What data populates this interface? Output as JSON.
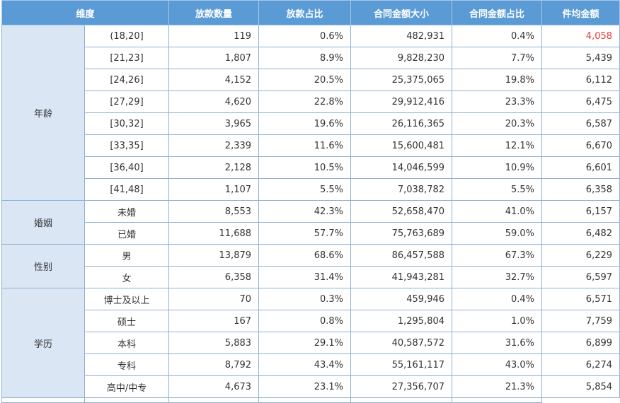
{
  "headers": [
    "维度",
    "放款数量",
    "放款占比",
    "合同金额大小",
    "合同金额占比",
    "件均金额"
  ],
  "groups": [
    {
      "name": "年龄",
      "rows": [
        {
          "label": "(18,20]",
          "count": "119",
          "count_pct": "0.6%",
          "amount": "482,931",
          "amount_pct": "0.4%",
          "avg": "4,058"
        },
        {
          "label": "[21,23]",
          "count": "1,807",
          "count_pct": "8.9%",
          "amount": "9,828,230",
          "amount_pct": "7.7%",
          "avg": "5,439"
        },
        {
          "label": "[24,26]",
          "count": "4,152",
          "count_pct": "20.5%",
          "amount": "25,375,065",
          "amount_pct": "19.8%",
          "avg": "6,112"
        },
        {
          "label": "[27,29]",
          "count": "4,620",
          "count_pct": "22.8%",
          "amount": "29,912,416",
          "amount_pct": "23.3%",
          "avg": "6,475"
        },
        {
          "label": "[30,32]",
          "count": "3,965",
          "count_pct": "19.6%",
          "amount": "26,116,365",
          "amount_pct": "20.3%",
          "avg": "6,587"
        },
        {
          "label": "[33,35]",
          "count": "2,339",
          "count_pct": "11.6%",
          "amount": "15,600,481",
          "amount_pct": "12.1%",
          "avg": "6,670"
        },
        {
          "label": "[36,40]",
          "count": "2,128",
          "count_pct": "10.5%",
          "amount": "14,046,599",
          "amount_pct": "10.9%",
          "avg": "6,601"
        },
        {
          "label": "[41,48]",
          "count": "1,107",
          "count_pct": "5.5%",
          "amount": "7,038,782",
          "amount_pct": "5.5%",
          "avg": "6,358"
        }
      ]
    },
    {
      "name": "婚姻",
      "rows": [
        {
          "label": "未婚",
          "count": "8,553",
          "count_pct": "42.3%",
          "amount": "52,658,470",
          "amount_pct": "41.0%",
          "avg": "6,157"
        },
        {
          "label": "已婚",
          "count": "11,688",
          "count_pct": "57.7%",
          "amount": "75,763,689",
          "amount_pct": "59.0%",
          "avg": "6,482"
        }
      ]
    },
    {
      "name": "性别",
      "rows": [
        {
          "label": "男",
          "count": "13,879",
          "count_pct": "68.6%",
          "amount": "86,457,588",
          "amount_pct": "67.3%",
          "avg": "6,229"
        },
        {
          "label": "女",
          "count": "6,358",
          "count_pct": "31.4%",
          "amount": "41,943,281",
          "amount_pct": "32.7%",
          "avg": "6,597"
        }
      ]
    },
    {
      "name": "学历",
      "rows": [
        {
          "label": "博士及以上",
          "count": "70",
          "count_pct": "0.3%",
          "amount": "459,946",
          "amount_pct": "0.4%",
          "avg": "6,571"
        },
        {
          "label": "硕士",
          "count": "167",
          "count_pct": "0.8%",
          "amount": "1,295,804",
          "amount_pct": "1.0%",
          "avg": "7,759"
        },
        {
          "label": "本科",
          "count": "5,883",
          "count_pct": "29.1%",
          "amount": "40,587,572",
          "amount_pct": "31.6%",
          "avg": "6,899"
        },
        {
          "label": "专科",
          "count": "8,792",
          "count_pct": "43.4%",
          "amount": "55,161,117",
          "amount_pct": "43.0%",
          "avg": "6,274"
        },
        {
          "label": "高中/中专",
          "count": "4,673",
          "count_pct": "23.1%",
          "amount": "27,356,707",
          "amount_pct": "21.3%",
          "avg": "5,854"
        }
      ]
    }
  ],
  "highlight_color": "#e03a3a"
}
